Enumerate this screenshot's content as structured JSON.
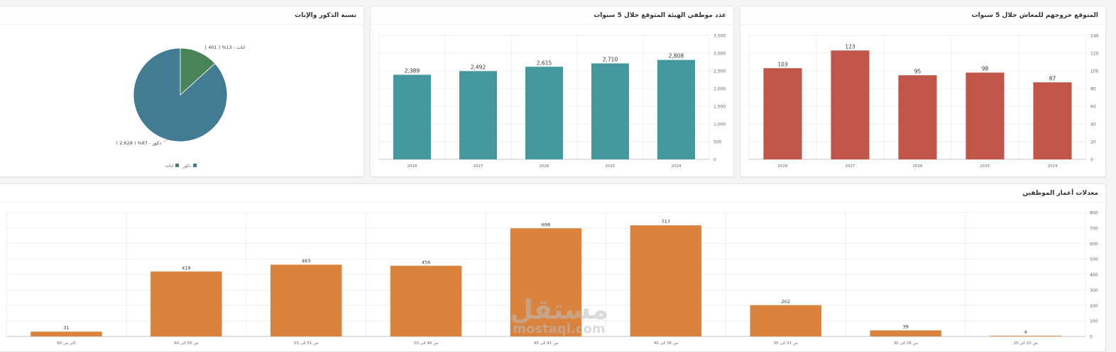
{
  "colors": {
    "retire_bar": "#c0554a",
    "staff_bar": "#44979c",
    "age_bar": "#d9833f",
    "pie_male": "#437b93",
    "pie_female": "#4a8259"
  },
  "chart_data": [
    {
      "id": "retire",
      "type": "bar",
      "title": "المتوقع خروجهم للمعاش خلال 5 سنوات",
      "categories": [
        "2028",
        "2027",
        "2026",
        "2025",
        "2024"
      ],
      "values": [
        103,
        123,
        95,
        98,
        87
      ],
      "labels": [
        "103",
        "123",
        "95",
        "98",
        "87"
      ],
      "yticks": [
        "0",
        "20",
        "40",
        "60",
        "80",
        "100",
        "120",
        "140"
      ],
      "ylim": [
        0,
        140
      ],
      "grid": true
    },
    {
      "id": "staff",
      "type": "bar",
      "title": "عدد موظفي الهيئة المتوقع خلال 5 سنوات",
      "categories": [
        "2028",
        "2027",
        "2026",
        "2025",
        "2024"
      ],
      "values": [
        2389,
        2492,
        2615,
        2710,
        2808
      ],
      "labels": [
        "2,389",
        "2,492",
        "2,615",
        "2,710",
        "2,808"
      ],
      "yticks": [
        "0",
        "500",
        "1,000",
        "1,500",
        "2,000",
        "2,500",
        "3,000",
        "3,500"
      ],
      "ylim": [
        0,
        3500
      ],
      "grid": true
    },
    {
      "id": "gender",
      "type": "pie",
      "title": "نسبة الذكور والإناث",
      "slices": [
        {
          "name": "ذكور",
          "value": 2628,
          "percent": 87,
          "label": "ذكور - 87% ( 2,628 )"
        },
        {
          "name": "اناث",
          "value": 401,
          "percent": 13,
          "label": "اناث - 13% ( 401 )"
        }
      ],
      "legend": [
        "ذكور",
        "اناث"
      ],
      "legend_position": "bottom"
    },
    {
      "id": "ages",
      "type": "bar",
      "title": "معدلات أعمار الموظفين",
      "categories": [
        "اكبر من 60",
        "من 56 الى 60",
        "من 51 الى 55",
        "من 46 الى 50",
        "من 41 الى 45",
        "من 36 الى 40",
        "من 31 الى 35",
        "من 26 الى 30",
        "من 20 الى 25"
      ],
      "values": [
        31,
        419,
        463,
        456,
        698,
        717,
        202,
        39,
        4
      ],
      "labels": [
        "31",
        "419",
        "463",
        "456",
        "698",
        "717",
        "202",
        "39",
        "4"
      ],
      "yticks": [
        "0",
        "100",
        "200",
        "300",
        "400",
        "500",
        "600",
        "700",
        "800"
      ],
      "ylim": [
        0,
        800
      ],
      "grid": true
    }
  ],
  "watermark": {
    "arabic": "مستقل",
    "latin": "mostaql.com"
  }
}
